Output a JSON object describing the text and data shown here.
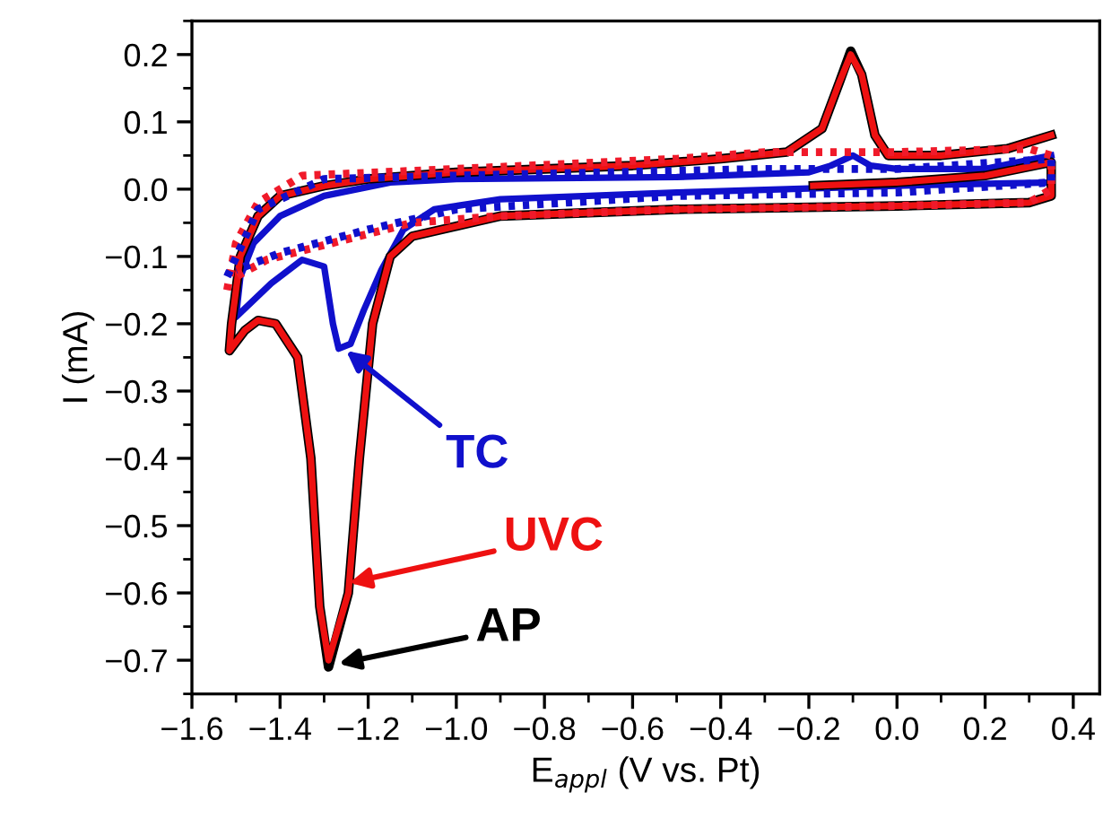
{
  "chart_data": {
    "type": "line",
    "xlabel": "E$_{appl}$ (V vs. Pt)",
    "ylabel": "I (mA)",
    "xlim": [
      -1.6,
      0.46
    ],
    "ylim": [
      -0.75,
      0.25
    ],
    "xticks": [
      {
        "value": -1.6,
        "label": "−1.6"
      },
      {
        "value": -1.4,
        "label": "−1.4"
      },
      {
        "value": -1.2,
        "label": "−1.2"
      },
      {
        "value": -1.0,
        "label": "−1.0"
      },
      {
        "value": -0.8,
        "label": "−0.8"
      },
      {
        "value": -0.6,
        "label": "−0.6"
      },
      {
        "value": -0.4,
        "label": "−0.4"
      },
      {
        "value": -0.2,
        "label": "−0.2"
      },
      {
        "value": 0,
        "label": "0.0"
      },
      {
        "value": 0.2,
        "label": "0.2"
      },
      {
        "value": 0.4,
        "label": "0.4"
      }
    ],
    "yticks": [
      {
        "value": -0.7,
        "label": "−0.7"
      },
      {
        "value": -0.6,
        "label": "−0.6"
      },
      {
        "value": -0.5,
        "label": "−0.5"
      },
      {
        "value": -0.4,
        "label": "−0.4"
      },
      {
        "value": -0.3,
        "label": "−0.3"
      },
      {
        "value": -0.2,
        "label": "−0.2"
      },
      {
        "value": -0.1,
        "label": "−0.1"
      },
      {
        "value": 0,
        "label": "0.0"
      },
      {
        "value": 0.1,
        "label": "0.1"
      },
      {
        "value": 0.2,
        "label": "0.2"
      }
    ],
    "grid": false,
    "legend": false,
    "marker": "none",
    "series": [
      {
        "color": "#1010cc",
        "line_style": "solid",
        "x": [
          0.35,
          0.2,
          0.0,
          -0.5,
          -0.9,
          -1.05,
          -1.12,
          -1.17,
          -1.21,
          -1.24,
          -1.267,
          -1.28,
          -1.3,
          -1.35,
          -1.42,
          -1.5,
          -1.49,
          -1.46,
          -1.4,
          -1.3,
          -1.15,
          -1.0,
          -0.5,
          -0.2,
          -0.15,
          -0.1,
          -0.06,
          0.0,
          0.2,
          0.35
        ],
        "values": [
          0.01,
          0.008,
          0.005,
          -0.005,
          -0.015,
          -0.03,
          -0.06,
          -0.12,
          -0.18,
          -0.23,
          -0.237,
          -0.2,
          -0.115,
          -0.105,
          -0.14,
          -0.19,
          -0.13,
          -0.08,
          -0.04,
          -0.01,
          0.01,
          0.015,
          0.018,
          0.025,
          0.035,
          0.05,
          0.035,
          0.03,
          0.03,
          0.05
        ]
      },
      {
        "color": "#000000",
        "line_style": "solid",
        "x": [
          -0.19,
          0.0,
          0.2,
          0.35,
          0.35,
          0.3,
          0.0,
          -0.5,
          -0.9,
          -1.1,
          -1.15,
          -1.19,
          -1.22,
          -1.245,
          -1.29,
          -1.31,
          -1.33,
          -1.36,
          -1.41,
          -1.45,
          -1.48,
          -1.515,
          -1.51,
          -1.49,
          -1.45,
          -1.4,
          -1.3,
          -1.2,
          -1.0,
          -0.6,
          -0.4,
          -0.25,
          -0.17,
          -0.13,
          -0.105,
          -0.08,
          -0.05,
          -0.02,
          0.1,
          0.25,
          0.35
        ],
        "values": [
          0.005,
          0.01,
          0.02,
          0.04,
          -0.01,
          -0.02,
          -0.025,
          -0.03,
          -0.04,
          -0.07,
          -0.1,
          -0.2,
          -0.4,
          -0.6,
          -0.71,
          -0.62,
          -0.4,
          -0.25,
          -0.2,
          -0.195,
          -0.21,
          -0.24,
          -0.2,
          -0.1,
          -0.04,
          -0.01,
          0.005,
          0.015,
          0.025,
          0.035,
          0.045,
          0.055,
          0.09,
          0.16,
          0.205,
          0.17,
          0.08,
          0.05,
          0.05,
          0.06,
          0.08
        ]
      },
      {
        "color": "#ee1111",
        "line_style": "solid",
        "x": [
          -0.19,
          0.0,
          0.2,
          0.35,
          0.35,
          0.3,
          0.0,
          -0.5,
          -0.9,
          -1.1,
          -1.15,
          -1.19,
          -1.22,
          -1.245,
          -1.29,
          -1.31,
          -1.33,
          -1.36,
          -1.41,
          -1.45,
          -1.48,
          -1.515,
          -1.51,
          -1.49,
          -1.45,
          -1.4,
          -1.3,
          -1.2,
          -1.0,
          -0.6,
          -0.4,
          -0.25,
          -0.17,
          -0.13,
          -0.105,
          -0.08,
          -0.05,
          -0.02,
          0.1,
          0.25,
          0.35
        ],
        "values": [
          0.005,
          0.01,
          0.02,
          0.04,
          -0.01,
          -0.02,
          -0.025,
          -0.03,
          -0.04,
          -0.07,
          -0.1,
          -0.2,
          -0.4,
          -0.6,
          -0.7,
          -0.62,
          -0.4,
          -0.25,
          -0.2,
          -0.195,
          -0.21,
          -0.24,
          -0.2,
          -0.1,
          -0.04,
          -0.01,
          0.005,
          0.015,
          0.025,
          0.035,
          0.045,
          0.055,
          0.09,
          0.16,
          0.2,
          0.17,
          0.08,
          0.05,
          0.05,
          0.06,
          0.08
        ]
      },
      {
        "color": "#f01a2a",
        "line_style": "dotted",
        "x": [
          -1.52,
          -1.5,
          -1.45,
          -1.35,
          -1.0,
          -0.5,
          -0.3,
          0.0,
          0.3,
          0.35,
          0.35,
          0.3,
          0.0,
          -0.5,
          -0.9,
          -1.1,
          -1.24,
          -1.43,
          -1.5
        ],
        "values": [
          -0.15,
          -0.08,
          -0.02,
          0.02,
          0.03,
          0.045,
          0.055,
          0.055,
          0.06,
          0.05,
          0.0,
          -0.02,
          -0.025,
          -0.03,
          -0.04,
          -0.05,
          -0.073,
          -0.105,
          -0.13
        ]
      },
      {
        "color": "#1010cc",
        "line_style": "dotted",
        "x": [
          -1.52,
          -1.45,
          -1.3,
          -1.0,
          -0.3,
          0.0,
          0.35,
          0.35,
          0.0,
          -0.5,
          -1.0,
          -1.2,
          -1.4,
          -1.5
        ],
        "values": [
          -0.13,
          -0.03,
          0.015,
          0.02,
          0.03,
          0.03,
          0.045,
          0.01,
          -0.005,
          -0.01,
          -0.03,
          -0.06,
          -0.095,
          -0.12
        ]
      }
    ],
    "annotations": [
      {
        "text": "TC",
        "x": -1.25,
        "y": -0.24
      },
      {
        "text": "AP",
        "x": -1.267,
        "y": -0.705
      },
      {
        "text": "UVC",
        "x": -1.243,
        "y": -0.585
      }
    ]
  }
}
